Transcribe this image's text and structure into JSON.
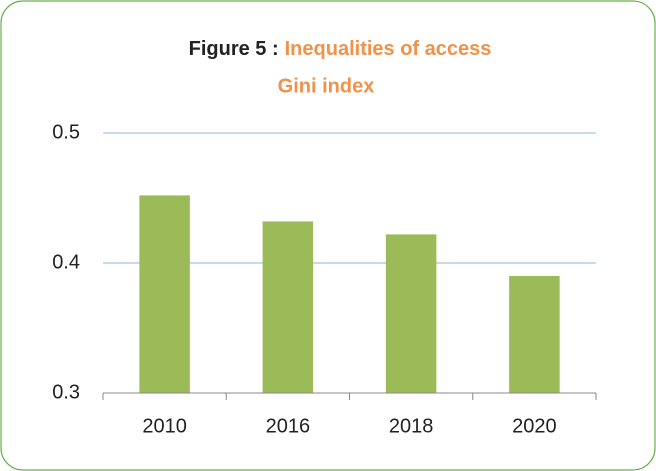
{
  "chart_data": {
    "type": "bar",
    "title_label": "Figure 5 :",
    "title": "Inequalities of access",
    "subtitle": "Gini index",
    "title_color": "#f0924a",
    "categories": [
      "2010",
      "2016",
      "2018",
      "2020"
    ],
    "values": [
      0.452,
      0.432,
      0.422,
      0.39
    ],
    "color": "#9bbb59",
    "ylim": [
      0.3,
      0.5
    ],
    "yticks": [
      0.3,
      0.4,
      0.5
    ],
    "grid": true,
    "grid_color": "#b9cde8"
  }
}
